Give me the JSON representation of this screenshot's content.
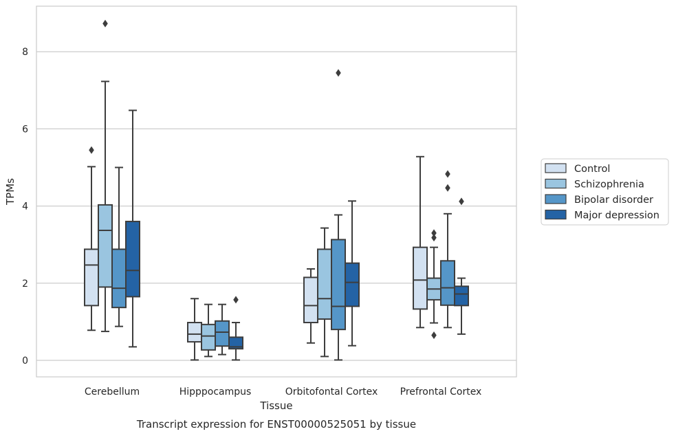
{
  "chart_data": {
    "type": "boxplot",
    "title": "Transcript expression for ENST00000525051 by tissue",
    "xlabel": "Tissue",
    "ylabel": "TPMs",
    "ylim": [
      -0.4,
      9.2
    ],
    "yticks": [
      0,
      2,
      4,
      6,
      8
    ],
    "grid": "horizontal",
    "legend_position": "right-outside",
    "categories": [
      "Cerebellum",
      "Hipppocampus",
      "Orbitofontal Cortex",
      "Prefrontal Cortex"
    ],
    "series": [
      {
        "name": "Control",
        "color": "#d2e1f1",
        "boxes": [
          {
            "whislo": 0.78,
            "q1": 1.42,
            "med": 2.47,
            "q3": 2.88,
            "whishi": 5.02,
            "fliers": [
              5.45
            ]
          },
          {
            "whislo": 0.01,
            "q1": 0.48,
            "med": 0.68,
            "q3": 0.98,
            "whishi": 1.6,
            "fliers": []
          },
          {
            "whislo": 0.45,
            "q1": 0.98,
            "med": 1.42,
            "q3": 2.15,
            "whishi": 2.37,
            "fliers": []
          },
          {
            "whislo": 0.85,
            "q1": 1.33,
            "med": 2.08,
            "q3": 2.93,
            "whishi": 5.28,
            "fliers": []
          }
        ]
      },
      {
        "name": "Schizophrenia",
        "color": "#9ac5e0",
        "boxes": [
          {
            "whislo": 0.75,
            "q1": 1.9,
            "med": 3.37,
            "q3": 4.03,
            "whishi": 7.23,
            "fliers": [
              8.73
            ]
          },
          {
            "whislo": 0.1,
            "q1": 0.27,
            "med": 0.63,
            "q3": 0.93,
            "whishi": 1.45,
            "fliers": []
          },
          {
            "whislo": 0.1,
            "q1": 1.07,
            "med": 1.6,
            "q3": 2.88,
            "whishi": 3.43,
            "fliers": []
          },
          {
            "whislo": 0.97,
            "q1": 1.57,
            "med": 1.85,
            "q3": 2.13,
            "whishi": 2.93,
            "fliers": [
              3.18,
              3.3,
              0.65
            ]
          }
        ]
      },
      {
        "name": "Bipolar disorder",
        "color": "#5596c8",
        "boxes": [
          {
            "whislo": 0.88,
            "q1": 1.37,
            "med": 1.87,
            "q3": 2.88,
            "whishi": 5.0,
            "fliers": []
          },
          {
            "whislo": 0.15,
            "q1": 0.37,
            "med": 0.73,
            "q3": 1.02,
            "whishi": 1.45,
            "fliers": []
          },
          {
            "whislo": 0.01,
            "q1": 0.8,
            "med": 1.4,
            "q3": 3.13,
            "whishi": 3.77,
            "fliers": [
              7.45
            ]
          },
          {
            "whislo": 0.85,
            "q1": 1.43,
            "med": 1.88,
            "q3": 2.58,
            "whishi": 3.8,
            "fliers": [
              4.47,
              4.83
            ]
          }
        ]
      },
      {
        "name": "Major depression",
        "color": "#2463a5",
        "boxes": [
          {
            "whislo": 0.35,
            "q1": 1.65,
            "med": 2.33,
            "q3": 3.6,
            "whishi": 6.48,
            "fliers": []
          },
          {
            "whislo": 0.01,
            "q1": 0.3,
            "med": 0.35,
            "q3": 0.6,
            "whishi": 0.98,
            "fliers": [
              1.57
            ]
          },
          {
            "whislo": 0.38,
            "q1": 1.4,
            "med": 2.02,
            "q3": 2.52,
            "whishi": 4.13,
            "fliers": []
          },
          {
            "whislo": 0.68,
            "q1": 1.42,
            "med": 1.72,
            "q3": 1.92,
            "whishi": 2.13,
            "fliers": [
              4.12
            ]
          }
        ]
      }
    ]
  }
}
